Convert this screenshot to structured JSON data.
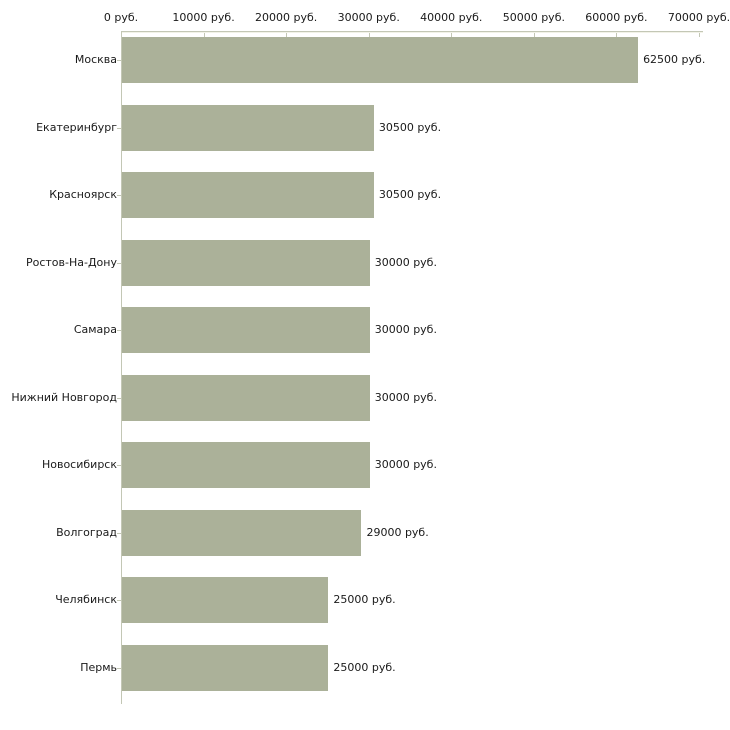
{
  "chart_data": {
    "type": "bar",
    "orientation": "horizontal",
    "title": "",
    "xlabel": "",
    "ylabel": "",
    "categories": [
      "Москва",
      "Екатеринбург",
      "Красноярск",
      "Ростов-На-Дону",
      "Самара",
      "Нижний Новгород",
      "Новосибирск",
      "Волгоград",
      "Челябинск",
      "Пермь"
    ],
    "values": [
      62500,
      30500,
      30500,
      30000,
      30000,
      30000,
      30000,
      29000,
      25000,
      25000
    ],
    "value_labels": [
      "62500 руб.",
      "30500 руб.",
      "30500 руб.",
      "30000 руб.",
      "30000 руб.",
      "30000 руб.",
      "30000 руб.",
      "29000 руб.",
      "25000 руб.",
      "25000 руб."
    ],
    "x_tick_labels": [
      "0 руб.",
      "10000 руб.",
      "20000 руб.",
      "30000 руб.",
      "40000 руб.",
      "50000 руб.",
      "60000 руб.",
      "70000 руб."
    ],
    "xlim": [
      0,
      70000
    ],
    "x_tick_step": 10000,
    "unit": "руб.",
    "grid": false,
    "legend": "none",
    "axis_position": "top",
    "bar_color": "#abb199",
    "axis_color": "#c3c7b5",
    "text_color": "#1a1a1a",
    "background_color": "#ffffff"
  }
}
